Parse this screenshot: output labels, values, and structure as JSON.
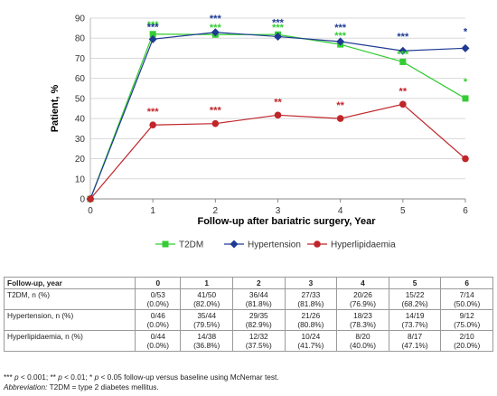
{
  "chart_data": {
    "type": "line",
    "xlabel": "Follow-up after bariatric surgery, Year",
    "ylabel": "Patient, %",
    "x": [
      0,
      1,
      2,
      3,
      4,
      5,
      6
    ],
    "xlim": [
      0,
      6
    ],
    "ylim": [
      0,
      90
    ],
    "yticks": [
      0,
      10,
      20,
      30,
      40,
      50,
      60,
      70,
      80,
      90
    ],
    "grid": "horizontal",
    "legend_position": "bottom",
    "series": [
      {
        "name": "T2DM",
        "color": "#33cc33",
        "marker": "square",
        "values": [
          0,
          82.0,
          81.8,
          81.8,
          76.9,
          68.2,
          50.0
        ],
        "annotations": [
          "",
          "***",
          "***",
          "***",
          "***",
          "***",
          "*"
        ]
      },
      {
        "name": "Hypertension",
        "color": "#1f3a93",
        "marker": "diamond",
        "values": [
          0,
          79.5,
          82.9,
          80.8,
          78.3,
          73.7,
          75.0
        ],
        "annotations": [
          "",
          "***",
          "***",
          "***",
          "***",
          "***",
          "*"
        ]
      },
      {
        "name": "Hyperlipidaemia",
        "color": "#c0252a",
        "marker": "circle",
        "values": [
          0,
          36.8,
          37.5,
          41.7,
          40.0,
          47.1,
          20.0
        ],
        "annotations": [
          "",
          "***",
          "***",
          "**",
          "**",
          "**",
          ""
        ]
      }
    ]
  },
  "table": {
    "header": [
      "Follow-up, year",
      "0",
      "1",
      "2",
      "3",
      "4",
      "5",
      "6"
    ],
    "rows": [
      {
        "label": "T2DM, n (%)",
        "cells": [
          {
            "n": "0/53",
            "pct": "(0.0%)"
          },
          {
            "n": "41/50",
            "pct": "(82.0%)"
          },
          {
            "n": "36/44",
            "pct": "(81.8%)"
          },
          {
            "n": "27/33",
            "pct": "(81.8%)"
          },
          {
            "n": "20/26",
            "pct": "(76.9%)"
          },
          {
            "n": "15/22",
            "pct": "(68.2%)"
          },
          {
            "n": "7/14",
            "pct": "(50.0%)"
          }
        ]
      },
      {
        "label": "Hypertension, n (%)",
        "cells": [
          {
            "n": "0/46",
            "pct": "(0.0%)"
          },
          {
            "n": "35/44",
            "pct": "(79.5%)"
          },
          {
            "n": "29/35",
            "pct": "(82.9%)"
          },
          {
            "n": "21/26",
            "pct": "(80.8%)"
          },
          {
            "n": "18/23",
            "pct": "(78.3%)"
          },
          {
            "n": "14/19",
            "pct": "(73.7%)"
          },
          {
            "n": "9/12",
            "pct": "(75.0%)"
          }
        ]
      },
      {
        "label": "Hyperlipidaemia, n (%)",
        "cells": [
          {
            "n": "0/44",
            "pct": "(0.0%)"
          },
          {
            "n": "14/38",
            "pct": "(36.8%)"
          },
          {
            "n": "12/32",
            "pct": "(37.5%)"
          },
          {
            "n": "10/24",
            "pct": "(41.7%)"
          },
          {
            "n": "8/20",
            "pct": "(40.0%)"
          },
          {
            "n": "8/17",
            "pct": "(47.1%)"
          },
          {
            "n": "2/10",
            "pct": "(20.0%)"
          }
        ]
      }
    ]
  },
  "footnotes": {
    "sig_1": "***",
    "p1": "p",
    "sig_1_text": " < 0.001; ** ",
    "p2": "p",
    "sig_2_text": " < 0.01; * ",
    "p3": "p",
    "sig_3_text": " < 0.05 follow-up versus baseline using McNemar test.",
    "abbr_label": "Abbreviation:",
    "abbr_text": " T2DM = type 2 diabetes mellitus."
  }
}
